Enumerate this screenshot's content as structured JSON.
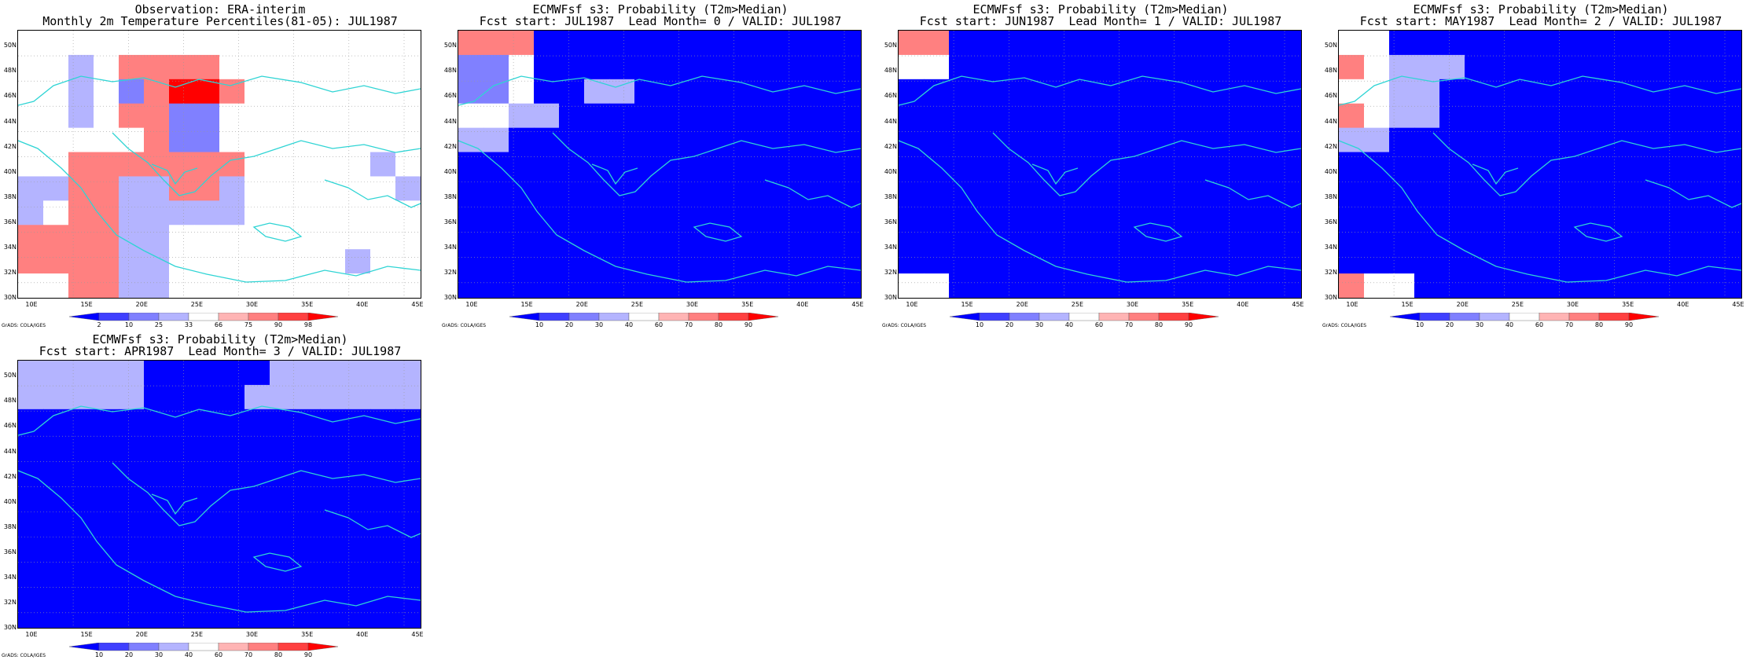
{
  "credit": "GrADS: COLA/IGES",
  "lat_ticks": [
    "30N",
    "32N",
    "34N",
    "36N",
    "38N",
    "40N",
    "42N",
    "44N",
    "46N",
    "48N",
    "50N"
  ],
  "lon_ticks": [
    "10E",
    "15E",
    "20E",
    "25E",
    "30E",
    "35E",
    "40E",
    "45E"
  ],
  "legends": {
    "percentile": {
      "labels": [
        "2",
        "10",
        "25",
        "33",
        "66",
        "75",
        "90",
        "98"
      ],
      "colors": [
        "#0000ff",
        "#4040ff",
        "#8080ff",
        "#b4b4ff",
        "#ffffff",
        "#ffb4b4",
        "#ff8080",
        "#ff4040",
        "#ff0000"
      ]
    },
    "probability": {
      "labels": [
        "10",
        "20",
        "30",
        "40",
        "60",
        "70",
        "80",
        "90"
      ],
      "colors": [
        "#0000ff",
        "#4040ff",
        "#8080ff",
        "#b4b4ff",
        "#ffffff",
        "#ffb4b4",
        "#ff8080",
        "#ff4040",
        "#ff0000"
      ]
    }
  },
  "panels": [
    {
      "title1": "Observation: ERA-interim",
      "title2": "Monthly 2m Temperature Percentiles(81-05): JUL1987",
      "legend": "percentile",
      "grid": [
        "WWWWWWWWWWWWWWWW",
        "WWLWSSSSWWWWWWWW",
        "WWLWMSDDSWWWWWWW",
        "WWLWSSMMWWWWWWWW",
        "WWWWWSMMWWWWWWWW",
        "WWSSSSSSSWWWWWLW",
        "LLSSLLSSLWWWWWWL",
        "LWSSLLLLLWWWWWWW",
        "SSSSLLWWWWWWWWWW",
        "SSSSLLWWWWWWWLWW",
        "WWSSLLWWWWWWWWWW"
      ]
    },
    {
      "title1": "ECMWFsf s3: Probability (T2m>Median)",
      "title2": "Fcst start: JUL1987  Lead Month= 0 / VALID: JUL1987",
      "legend": "probability",
      "grid": [
        "SSSPPPPPPPPPPPPP",
        "MMWPPPPPPPPPPPPP",
        "MMWPPLLPPPPPPPPP",
        "WWLLPPPPPPPPPPPP",
        "LLPPPPPPPPPPPPPP",
        "PPPPPPPPPPPPPPPP",
        "PPPPPPPPPPPPPPPP",
        "PPPPPPPPPPPPPPPP",
        "PPPPPPPPPPPPPPPP",
        "PPPPPPPPPPPPPPPP",
        "PPPPPPPPPPPPPPPP"
      ]
    },
    {
      "title1": "ECMWFsf s3: Probability (T2m>Median)",
      "title2": "Fcst start: JUN1987  Lead Month= 1 / VALID: JUL1987",
      "legend": "probability",
      "grid": [
        "SSPPPPPPPPPPPPPP",
        "WWPPPPPPPPPPPPPP",
        "PPPPPPPPPPPPPPPP",
        "PPPPPPPPPPPPPPPP",
        "PPPPPPPPPPPPPPPP",
        "PPPPPPPPPPPPPPPP",
        "PPPPPPPPPPPPPPPP",
        "PPPPPPPPPPPPPPPP",
        "PPPPPPPPPPPPPPPP",
        "PPPPPPPPPPPPPPPP",
        "WWPPPPPPPPPPPPPP"
      ]
    },
    {
      "title1": "ECMWFsf s3: Probability (T2m>Median)",
      "title2": "Fcst start: MAY1987  Lead Month= 2 / VALID: JUL1987",
      "legend": "probability",
      "grid": [
        "WWPPPPPPPPPPPPPP",
        "SWLLLPPPPPPPPPPP",
        "WWLLPPPPPPPPPPPP",
        "SWLLPPPPPPPPPPPP",
        "LLPPPPPPPPPPPPPP",
        "PPPPPPPPPPPPPPPP",
        "PPPPPPPPPPPPPPPP",
        "PPPPPPPPPPPPPPPP",
        "PPPPPPPPPPPPPPPP",
        "PPPPPPPPPPPPPPPP",
        "SWWPPPPPPPPPPPPP"
      ]
    },
    {
      "title1": "ECMWFsf s3: Probability (T2m>Median)",
      "title2": "Fcst start: APR1987  Lead Month= 3 / VALID: JUL1987",
      "legend": "probability",
      "grid": [
        "LLLLLPPPPPLLLLLL",
        "LLLLLPPPPLLLLLLL",
        "PPPPPPPPPPPPPPPP",
        "PPPPPPPPPPPPPPPP",
        "PPPPPPPPPPPPPPPP",
        "PPPPPPPPPPPPPPPP",
        "PPPPPPPPPPPPPPPP",
        "PPPPPPPPPPPPPPPP",
        "PPPPPPPPPPPPPPPP",
        "PPPPPPPPPPPPPPPP",
        "PPPPPPPPPPPPPPPP"
      ]
    }
  ]
}
